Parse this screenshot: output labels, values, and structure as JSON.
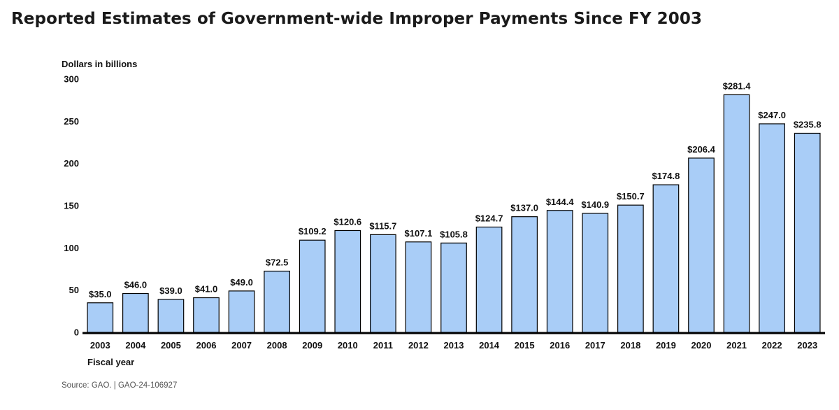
{
  "title": "Reported Estimates of Government-wide Improper Payments Since FY 2003",
  "source": "Source: GAO.  |  GAO-24-106927",
  "colors": {
    "bar_fill": "#a9cdf7",
    "bar_stroke": "#000000",
    "axis": "#000000"
  },
  "chart_data": {
    "type": "bar",
    "ylabel": "Dollars in billions",
    "xlabel": "Fiscal year",
    "ylim": [
      0,
      300
    ],
    "yticks": [
      0,
      50,
      100,
      150,
      200,
      250,
      300
    ],
    "grid": false,
    "categories": [
      "2003",
      "2004",
      "2005",
      "2006",
      "2007",
      "2008",
      "2009",
      "2010",
      "2011",
      "2012",
      "2013",
      "2014",
      "2015",
      "2016",
      "2017",
      "2018",
      "2019",
      "2020",
      "2021",
      "2022",
      "2023"
    ],
    "values": [
      35.0,
      46.0,
      39.0,
      41.0,
      49.0,
      72.5,
      109.2,
      120.6,
      115.7,
      107.1,
      105.8,
      124.7,
      137.0,
      144.4,
      140.9,
      150.7,
      174.8,
      206.4,
      281.4,
      247.0,
      235.8
    ],
    "data_labels": [
      "$35.0",
      "$46.0",
      "$39.0",
      "$41.0",
      "$49.0",
      "$72.5",
      "$109.2",
      "$120.6",
      "$115.7",
      "$107.1",
      "$105.8",
      "$124.7",
      "$137.0",
      "$144.4",
      "$140.9",
      "$150.7",
      "$174.8",
      "$206.4",
      "$281.4",
      "$247.0",
      "$235.8"
    ]
  }
}
